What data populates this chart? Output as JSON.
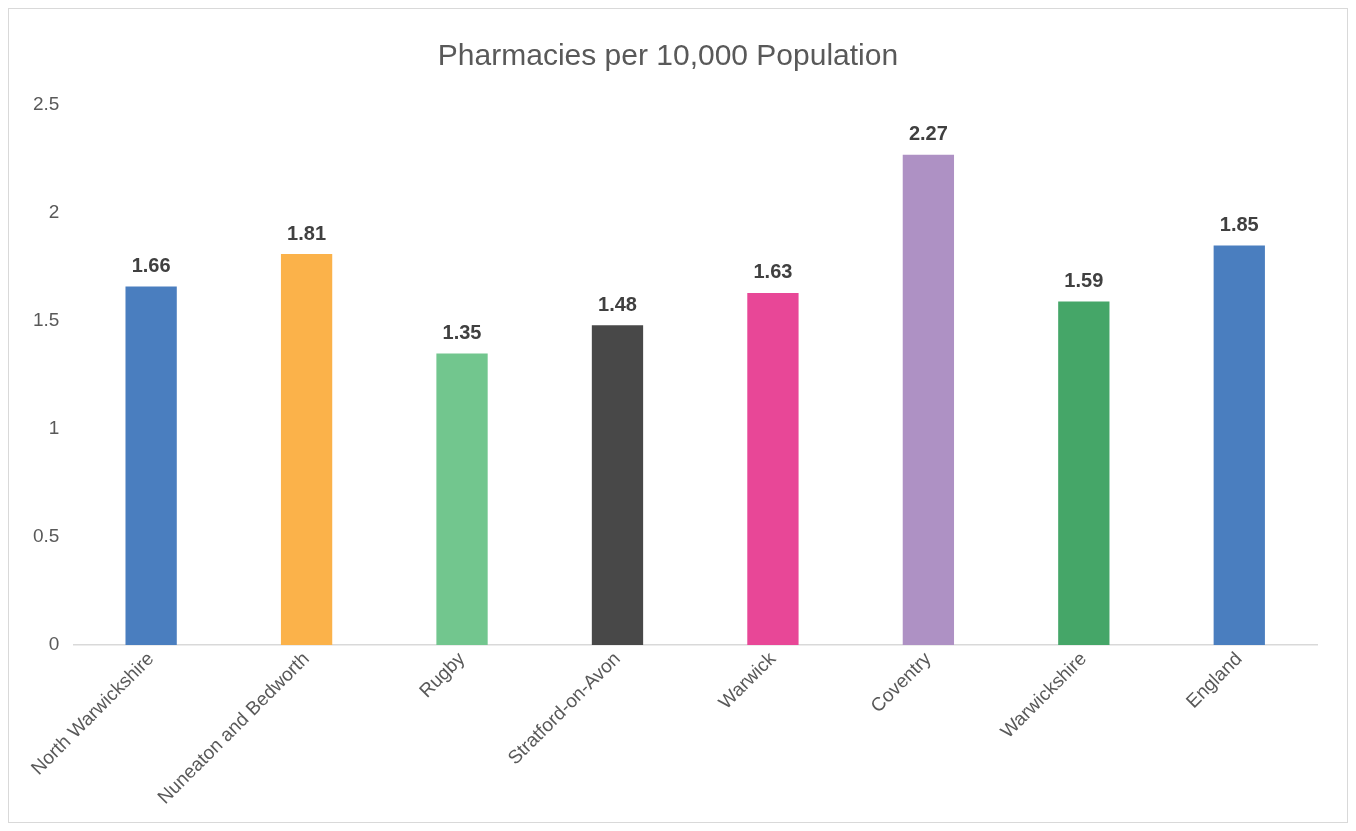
{
  "chart_data": {
    "type": "bar",
    "title": "Pharmacies per 10,000 Population",
    "categories": [
      "North Warwickshire",
      "Nuneaton and Bedworth",
      "Rugby",
      "Stratford-on-Avon",
      "Warwick",
      "Coventry",
      "Warwickshire",
      "England"
    ],
    "values": [
      1.66,
      1.81,
      1.35,
      1.48,
      1.63,
      2.27,
      1.59,
      1.85
    ],
    "colors": [
      "#4a7ebf",
      "#fbb24a",
      "#72c68e",
      "#484848",
      "#e84797",
      "#ae91c4",
      "#45a668",
      "#4a7ebf"
    ],
    "ylim": [
      0,
      2.5
    ],
    "yticks": [
      0,
      0.5,
      1,
      1.5,
      2,
      2.5
    ],
    "grid": false,
    "legend": false,
    "data_labels": true
  }
}
